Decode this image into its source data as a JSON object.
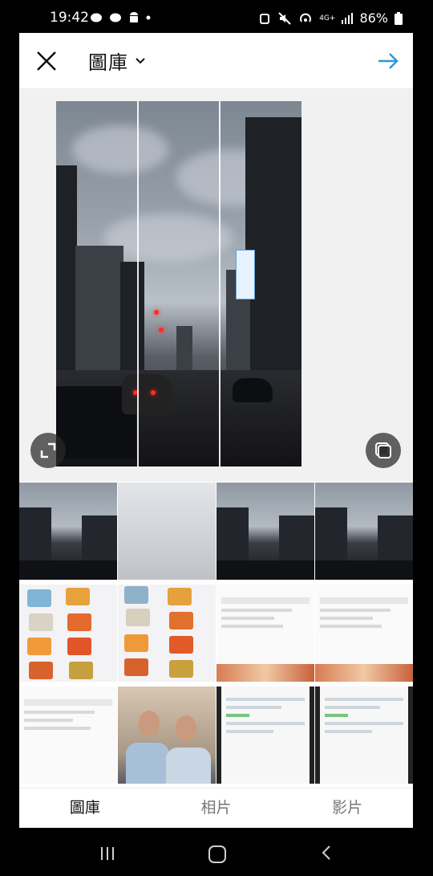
{
  "status_bar": {
    "time": "19:42",
    "network": "4G+",
    "battery": "86%",
    "icons": [
      "chat-bubble-icon",
      "chat-bubble-icon",
      "android-icon",
      "dot-icon",
      "alarm-icon",
      "mute-icon",
      "hotspot-icon",
      "signal-icon",
      "battery-icon"
    ]
  },
  "toolbar": {
    "close_icon": "close-icon",
    "title": "圖庫",
    "dropdown_icon": "chevron-down-icon",
    "next_icon": "arrow-right-icon"
  },
  "preview": {
    "expand_icon": "expand-icon",
    "multi_select_icon": "multi-select-icon",
    "grid_columns": 3
  },
  "thumbnails": [
    {
      "kind": "street"
    },
    {
      "kind": "faded"
    },
    {
      "kind": "street"
    },
    {
      "kind": "street"
    },
    {
      "kind": "cards"
    },
    {
      "kind": "cards"
    },
    {
      "kind": "doc"
    },
    {
      "kind": "doc"
    },
    {
      "kind": "doc"
    },
    {
      "kind": "people"
    },
    {
      "kind": "chat"
    },
    {
      "kind": "chat"
    }
  ],
  "tabs": [
    {
      "label": "圖庫",
      "active": true
    },
    {
      "label": "相片",
      "active": false
    },
    {
      "label": "影片",
      "active": false
    }
  ],
  "nav": {
    "recent_icon": "recent-apps-icon",
    "home_icon": "home-icon",
    "back_icon": "back-icon"
  },
  "colors": {
    "accent": "#2a9ad8",
    "background": "#ffffff",
    "preview_bg": "#f1f1f1"
  }
}
